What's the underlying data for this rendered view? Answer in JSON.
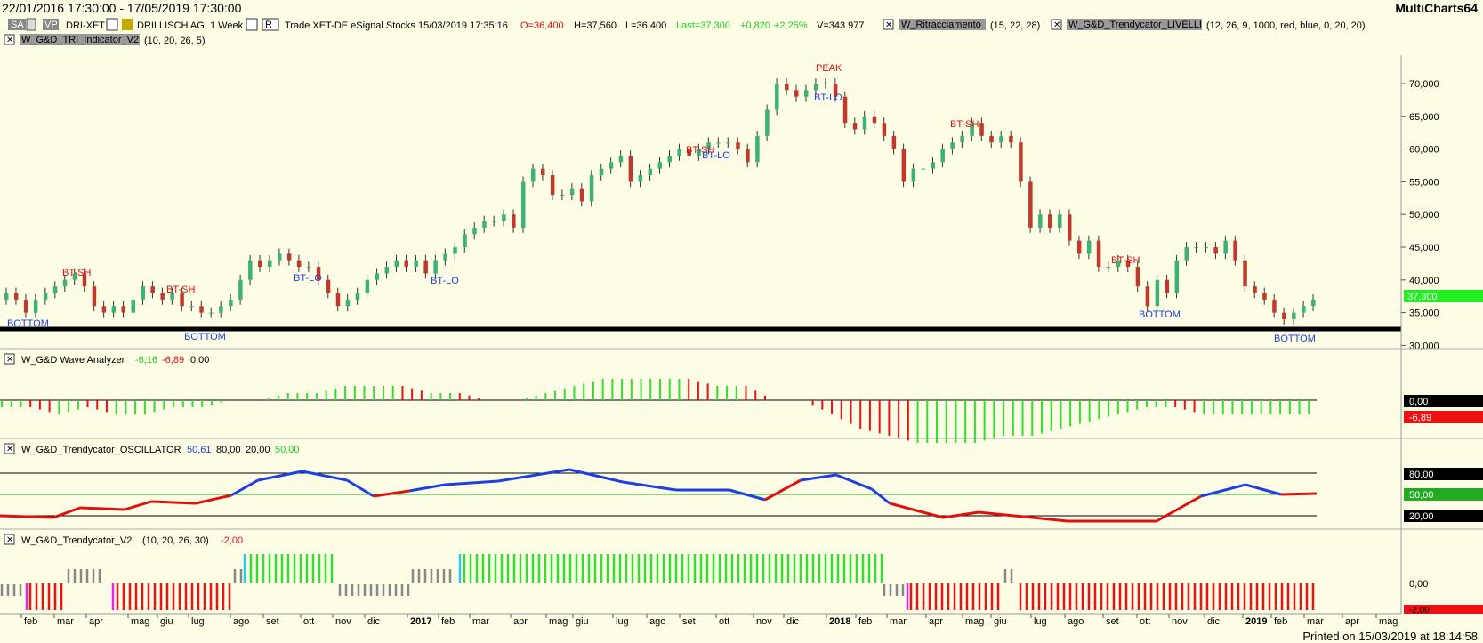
{
  "window": {
    "date_range": "22/01/2016 17:30:00 - 17/05/2019 17:30:00",
    "app_name": "MultiCharts64",
    "printed_on": "Printed on 15/03/2019 at 18:14:58"
  },
  "instrument": {
    "mode_btn": "SA",
    "vp_btn": "VP",
    "symbol": "DRI-XET",
    "company": "DRILLISCH AG",
    "interval": "1 Week",
    "r_btn": "R",
    "data_info": "Trade  XET-DE  eSignal  Stocks  15/03/2019  17:35:16",
    "open": "O=36,400",
    "high": "H=37,560",
    "low": "L=36,400",
    "last": "Last=37,300",
    "change": "+0,820",
    "change_pct": "+2,25%",
    "volume": "V=343.977"
  },
  "studies": {
    "ritracciamento": {
      "name": "W_Ritracciamento",
      "params": "(15, 22, 28)"
    },
    "livelli": {
      "name": "W_G&D_Trendycator_LIVELLI",
      "params": "(12, 26, 9, 1000, red, blue, 0, 20, 20)"
    },
    "tri": {
      "name": "W_G&D_TRI_Indicator_V2",
      "params": "(10, 20, 26, 5)"
    }
  },
  "price_axis": {
    "labels": [
      "70,000",
      "65,000",
      "60,000",
      "55,000",
      "50,000",
      "45,000",
      "40,000",
      "35,000",
      "30,000"
    ],
    "last_tag": "37,300"
  },
  "annotations": {
    "peak": "PEAK",
    "bt_sh": "BT-SH",
    "bt_lo": "BT-LO",
    "bottom": "BOTTOM"
  },
  "wave": {
    "name": "W_G&D Wave Analyzer",
    "v1": "-6,16",
    "v2": "-6,89",
    "v3": "0,00",
    "axis_zero": "0,00",
    "axis_tag": "-6,89"
  },
  "osc": {
    "name": "W_G&D_Trendycator_OSCILLATOR",
    "v1": "50,61",
    "v2": "80,00",
    "v3": "20,00",
    "v4": "50,00",
    "axis_80": "80,00",
    "axis_50": "50,00",
    "axis_20": "20,00"
  },
  "trendy": {
    "name": "W_G&D_Trendycator_V2",
    "params": "(10, 20, 26, 30)",
    "value": "-2,00",
    "axis_zero": "0,00",
    "axis_tag": "-2,00"
  },
  "time_axis": [
    {
      "label": "feb"
    },
    {
      "label": "mar"
    },
    {
      "label": "apr"
    },
    {
      "label": "mag"
    },
    {
      "label": "giu"
    },
    {
      "label": "lug"
    },
    {
      "label": "ago"
    },
    {
      "label": "set"
    },
    {
      "label": "ott"
    },
    {
      "label": "nov"
    },
    {
      "label": "dic"
    },
    {
      "label": "2017"
    },
    {
      "label": "feb"
    },
    {
      "label": "mar"
    },
    {
      "label": "apr"
    },
    {
      "label": "mag"
    },
    {
      "label": "giu"
    },
    {
      "label": "lug"
    },
    {
      "label": "ago"
    },
    {
      "label": "set"
    },
    {
      "label": "ott"
    },
    {
      "label": "nov"
    },
    {
      "label": "dic"
    },
    {
      "label": "2018"
    },
    {
      "label": "feb"
    },
    {
      "label": "mar"
    },
    {
      "label": "apr"
    },
    {
      "label": "mag"
    },
    {
      "label": "giu"
    },
    {
      "label": "lug"
    },
    {
      "label": "ago"
    },
    {
      "label": "set"
    },
    {
      "label": "ott"
    },
    {
      "label": "nov"
    },
    {
      "label": "dic"
    },
    {
      "label": "2019"
    },
    {
      "label": "feb"
    },
    {
      "label": "mar"
    },
    {
      "label": "apr"
    },
    {
      "label": "mag"
    }
  ],
  "colors": {
    "background": "#fdfde6",
    "up": "#3cb371",
    "down": "#c0392b",
    "green_bar": "#33dd33",
    "red_bar": "#ee1111",
    "blue_line": "#1f3fe0",
    "red_line": "#e01010",
    "last_tag": "#22ee22",
    "gray_bar": "#888888",
    "cyan": "#22ccee",
    "magenta": "#ee22ee"
  },
  "chart_data": {
    "type": "candlestick",
    "price_closes": [
      38,
      37,
      35,
      37,
      38,
      39,
      40,
      41,
      39,
      36,
      35,
      36,
      35,
      37,
      39,
      38,
      37,
      38,
      36,
      36,
      35,
      35,
      36,
      37,
      40,
      43,
      42,
      43,
      44,
      43,
      42,
      42,
      40,
      38,
      36,
      37,
      38,
      40,
      41,
      42,
      43,
      42,
      43,
      41,
      43,
      44,
      45,
      47,
      48,
      49,
      49,
      50,
      48,
      55,
      57,
      56,
      53,
      53,
      54,
      52,
      56,
      57,
      58,
      59,
      55,
      56,
      57,
      58,
      59,
      60,
      59,
      60,
      61,
      61,
      61,
      60,
      58,
      62,
      66,
      70,
      69,
      68,
      69,
      70,
      70,
      68,
      64,
      63,
      65,
      64,
      62,
      60,
      55,
      57,
      57,
      58,
      60,
      61,
      62,
      64,
      62,
      61,
      62,
      61,
      55,
      48,
      50,
      48,
      50,
      46,
      44,
      46,
      42,
      42,
      43,
      42,
      39,
      36,
      40,
      38,
      43,
      45,
      45,
      45,
      44,
      46,
      43,
      39,
      38,
      37,
      35,
      34,
      35,
      36,
      37
    ],
    "wave_values": [
      -1,
      -1,
      -2,
      -1,
      -2,
      -2,
      -1,
      -1,
      0,
      0,
      1,
      1,
      2,
      2,
      2,
      1,
      1,
      0,
      0,
      1,
      2,
      3,
      3,
      3,
      3,
      2,
      2,
      0,
      0,
      -2,
      -4,
      -5,
      -6,
      -6,
      -6,
      -5,
      -5,
      -4,
      -3,
      -2,
      -1,
      -1,
      -2,
      -2,
      -2,
      -2
    ],
    "oscillator_range": [
      0,
      100
    ],
    "oscillator_levels": [
      80,
      50,
      20
    ],
    "trendycator_value": -2
  }
}
